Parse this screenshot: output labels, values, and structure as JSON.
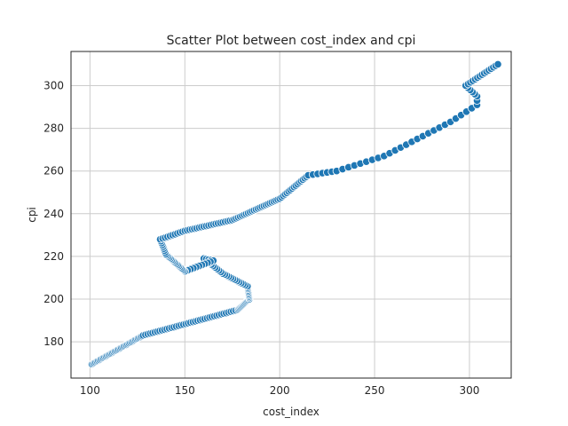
{
  "chart_data": {
    "type": "scatter",
    "title": "Scatter Plot between cost_index and cpi",
    "xlabel": "cost_index",
    "ylabel": "cpi",
    "xlim": [
      90,
      322
    ],
    "ylim": [
      163,
      316
    ],
    "xticks": [
      100,
      150,
      200,
      250,
      300
    ],
    "yticks": [
      180,
      200,
      220,
      240,
      260,
      280,
      300
    ],
    "grid": true,
    "color": "#1f77b4",
    "segments": [
      {
        "from": [
          101,
          169.5
        ],
        "to": [
          128,
          183
        ],
        "n": 40
      },
      {
        "from": [
          128,
          183
        ],
        "to": [
          178,
          195
        ],
        "n": 40
      },
      {
        "from": [
          178,
          195
        ],
        "to": [
          184,
          200
        ],
        "n": 12
      },
      {
        "from": [
          184,
          200
        ],
        "to": [
          183,
          206
        ],
        "n": 10
      },
      {
        "from": [
          183,
          206
        ],
        "to": [
          170,
          212
        ],
        "n": 12
      },
      {
        "from": [
          170,
          212
        ],
        "to": [
          160,
          219
        ],
        "n": 10
      },
      {
        "from": [
          160,
          219
        ],
        "to": [
          165,
          218
        ],
        "n": 4
      },
      {
        "from": [
          165,
          218
        ],
        "to": [
          150,
          213
        ],
        "n": 10
      },
      {
        "from": [
          150,
          213
        ],
        "to": [
          145,
          217
        ],
        "n": 8
      },
      {
        "from": [
          145,
          217
        ],
        "to": [
          140,
          221
        ],
        "n": 8
      },
      {
        "from": [
          140,
          221
        ],
        "to": [
          137,
          228
        ],
        "n": 8
      },
      {
        "from": [
          137,
          228
        ],
        "to": [
          150,
          232
        ],
        "n": 10
      },
      {
        "from": [
          150,
          232
        ],
        "to": [
          175,
          237
        ],
        "n": 20
      },
      {
        "from": [
          175,
          237
        ],
        "to": [
          200,
          247
        ],
        "n": 24
      },
      {
        "from": [
          200,
          247
        ],
        "to": [
          215,
          258
        ],
        "n": 16
      },
      {
        "from": [
          215,
          258
        ],
        "to": [
          230,
          260
        ],
        "n": 6
      },
      {
        "from": [
          230,
          260
        ],
        "to": [
          255,
          267
        ],
        "n": 8
      },
      {
        "from": [
          255,
          267
        ],
        "to": [
          290,
          283
        ],
        "n": 12
      },
      {
        "from": [
          290,
          283
        ],
        "to": [
          304,
          291
        ],
        "n": 5
      },
      {
        "from": [
          304,
          291
        ],
        "to": [
          304,
          295
        ],
        "n": 2
      },
      {
        "from": [
          304,
          295
        ],
        "to": [
          298,
          300
        ],
        "n": 5
      },
      {
        "from": [
          298,
          300
        ],
        "to": [
          303,
          303
        ],
        "n": 4
      },
      {
        "from": [
          303,
          303
        ],
        "to": [
          315,
          310
        ],
        "n": 10
      }
    ]
  }
}
